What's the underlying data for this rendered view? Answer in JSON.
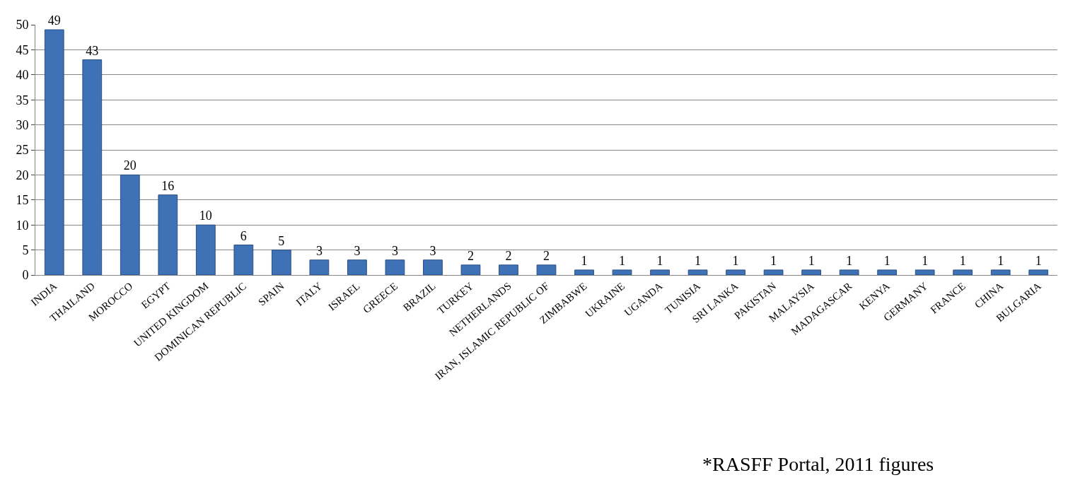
{
  "chart_data": {
    "type": "bar",
    "categories": [
      "INDIA",
      "THAILAND",
      "MOROCCO",
      "EGYPT",
      "UNITED KINGDOM",
      "DOMINICAN REPUBLIC",
      "SPAIN",
      "ITALY",
      "ISRAEL",
      "GREECE",
      "BRAZIL",
      "TURKEY",
      "NETHERLANDS",
      "IRAN, ISLAMIC REPUBLIC OF",
      "ZIMBABWE",
      "UKRAINE",
      "UGANDA",
      "TUNISIA",
      "SRI LANKA",
      "PAKISTAN",
      "MALAYSIA",
      "MADAGASCAR",
      "KENYA",
      "GERMANY",
      "FRANCE",
      "CHINA",
      "BULGARIA"
    ],
    "values": [
      49,
      43,
      20,
      16,
      10,
      6,
      5,
      3,
      3,
      3,
      3,
      2,
      2,
      2,
      1,
      1,
      1,
      1,
      1,
      1,
      1,
      1,
      1,
      1,
      1,
      1,
      1
    ],
    "color": "#3f71b6",
    "ylim": [
      0,
      50
    ],
    "yticks": [
      0,
      5,
      10,
      15,
      20,
      25,
      30,
      35,
      40,
      45,
      50
    ],
    "grid": "y",
    "data_labels": true,
    "legend": false,
    "annotations": [
      "*RASFF Portal, 2011 figures"
    ]
  }
}
